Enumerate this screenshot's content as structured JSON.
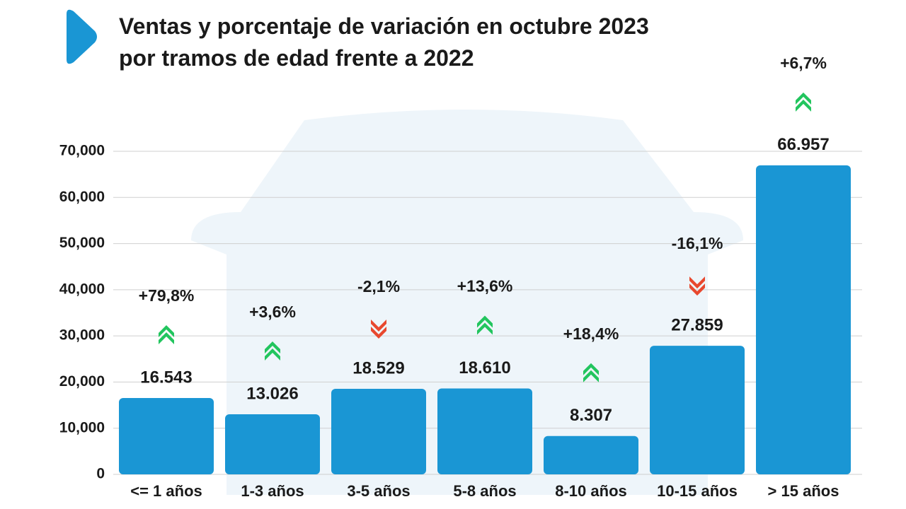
{
  "chart_data": {
    "type": "bar",
    "title_lines": [
      "Ventas y porcentaje de variación en octubre 2023",
      "por tramos de edad frente a 2022"
    ],
    "categories": [
      "<= 1 años",
      "1-3 años",
      "3-5 años",
      "5-8 años",
      "8-10 años",
      "10-15 años",
      "> 15 años"
    ],
    "values": [
      16543,
      13026,
      18529,
      18610,
      8307,
      27859,
      66957
    ],
    "value_labels": [
      "16.543",
      "13.026",
      "18.529",
      "18.610",
      "8.307",
      "27.859",
      "66.957"
    ],
    "changes": [
      79.8,
      3.6,
      -2.1,
      13.6,
      18.4,
      -16.1,
      6.7
    ],
    "change_labels": [
      "+79,8%",
      "+3,6%",
      "-2,1%",
      "+13,6%",
      "+18,4%",
      "-16,1%",
      "+6,7%"
    ],
    "color": "#1a96d4",
    "up_color": "#22c55e",
    "down_color": "#e8482e",
    "ylim": [
      0,
      70000
    ],
    "yticks": [
      0,
      {
        "value": 10000,
        "label": "10,000"
      },
      {
        "value": 20000,
        "label": "20,000"
      },
      {
        "value": 30000,
        "label": "30,000"
      },
      {
        "value": 40000,
        "label": "40,000"
      },
      {
        "value": 50000,
        "label": "50,000"
      },
      {
        "value": 60000,
        "label": "60,000"
      },
      {
        "value": 70000,
        "label": "70,000"
      }
    ],
    "grid": true
  }
}
